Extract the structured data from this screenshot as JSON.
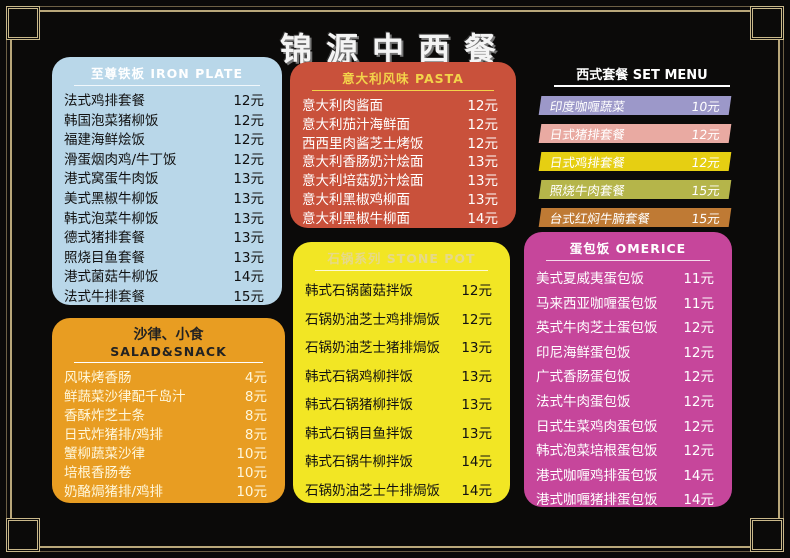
{
  "title": "锦源中西餐",
  "colors": {
    "iron": "#b9d7e9",
    "pasta": "#c9513b",
    "salad": "#e89d22",
    "stone": "#f2e624",
    "omerice": "#c6469b"
  },
  "iron_plate": {
    "header": "至尊铁板  IRON PLATE",
    "items": [
      [
        "法式鸡排套餐",
        "12元"
      ],
      [
        "韩国泡菜猪柳饭",
        "12元"
      ],
      [
        "福建海鲜烩饭",
        "12元"
      ],
      [
        "滑蛋烟肉鸡/牛丁饭",
        "12元"
      ],
      [
        "港式窝蛋牛肉饭",
        "13元"
      ],
      [
        "美式黑椒牛柳饭",
        "13元"
      ],
      [
        "韩式泡菜牛柳饭",
        "13元"
      ],
      [
        "德式猪排套餐",
        "13元"
      ],
      [
        "照烧目鱼套餐",
        "13元"
      ],
      [
        "港式菌菇牛柳饭",
        "14元"
      ],
      [
        "法式牛排套餐",
        "15元"
      ]
    ]
  },
  "pasta": {
    "header": "意大利风味  PASTA",
    "items": [
      [
        "意大利肉酱面",
        "12元"
      ],
      [
        "意大利茄汁海鲜面",
        "12元"
      ],
      [
        "西西里肉酱芝士烤饭",
        "12元"
      ],
      [
        "意大利香肠奶汁烩面",
        "13元"
      ],
      [
        "意大利培菇奶汁烩面",
        "13元"
      ],
      [
        "意大利黑椒鸡柳面",
        "13元"
      ],
      [
        "意大利黑椒牛柳面",
        "14元"
      ]
    ]
  },
  "set_menu": {
    "header": "西式套餐  SET MENU",
    "items": [
      [
        "印度咖喱蔬菜",
        "10元",
        "#9c98c9"
      ],
      [
        "日式猪排套餐",
        "12元",
        "#e9aaa2"
      ],
      [
        "日式鸡排套餐",
        "12元",
        "#e6cf12"
      ],
      [
        "照烧牛肉套餐",
        "15元",
        "#b5b54a"
      ],
      [
        "台式红焖牛腩套餐",
        "15元",
        "#bf7a34"
      ]
    ]
  },
  "salad": {
    "header": "沙律、小食",
    "header_en": "SALAD&SNACK",
    "items": [
      [
        "风味烤香肠",
        "4元"
      ],
      [
        "鲜蔬菜沙律配千岛汁",
        "8元"
      ],
      [
        "香酥炸芝士条",
        "8元"
      ],
      [
        "日式炸猪排/鸡排",
        "8元"
      ],
      [
        "蟹柳蔬菜沙律",
        "10元"
      ],
      [
        "培根香肠卷",
        "10元"
      ],
      [
        "奶酪焗猪排/鸡排",
        "10元"
      ]
    ]
  },
  "stone_pot": {
    "header": "石锅系列  STONE POT",
    "items": [
      [
        "韩式石锅菌菇拌饭",
        "12元"
      ],
      [
        "石锅奶油芝士鸡排焗饭",
        "12元"
      ],
      [
        "石锅奶油芝士猪排焗饭",
        "13元"
      ],
      [
        "韩式石锅鸡柳拌饭",
        "13元"
      ],
      [
        "韩式石锅猪柳拌饭",
        "13元"
      ],
      [
        "韩式石锅目鱼拌饭",
        "13元"
      ],
      [
        "韩式石锅牛柳拌饭",
        "14元"
      ],
      [
        "石锅奶油芝士牛排焗饭",
        "14元"
      ]
    ]
  },
  "omerice": {
    "header": "蛋包饭  OMERICE",
    "items": [
      [
        "美式夏威夷蛋包饭",
        "11元"
      ],
      [
        "马来西亚咖喱蛋包饭",
        "11元"
      ],
      [
        "英式牛肉芝士蛋包饭",
        "12元"
      ],
      [
        "印尼海鲜蛋包饭",
        "12元"
      ],
      [
        "广式香肠蛋包饭",
        "12元"
      ],
      [
        "法式牛肉蛋包饭",
        "12元"
      ],
      [
        "日式生菜鸡肉蛋包饭",
        "12元"
      ],
      [
        "韩式泡菜培根蛋包饭",
        "12元"
      ],
      [
        "港式咖喱鸡排蛋包饭",
        "14元"
      ],
      [
        "港式咖喱猪排蛋包饭",
        "14元"
      ]
    ]
  }
}
